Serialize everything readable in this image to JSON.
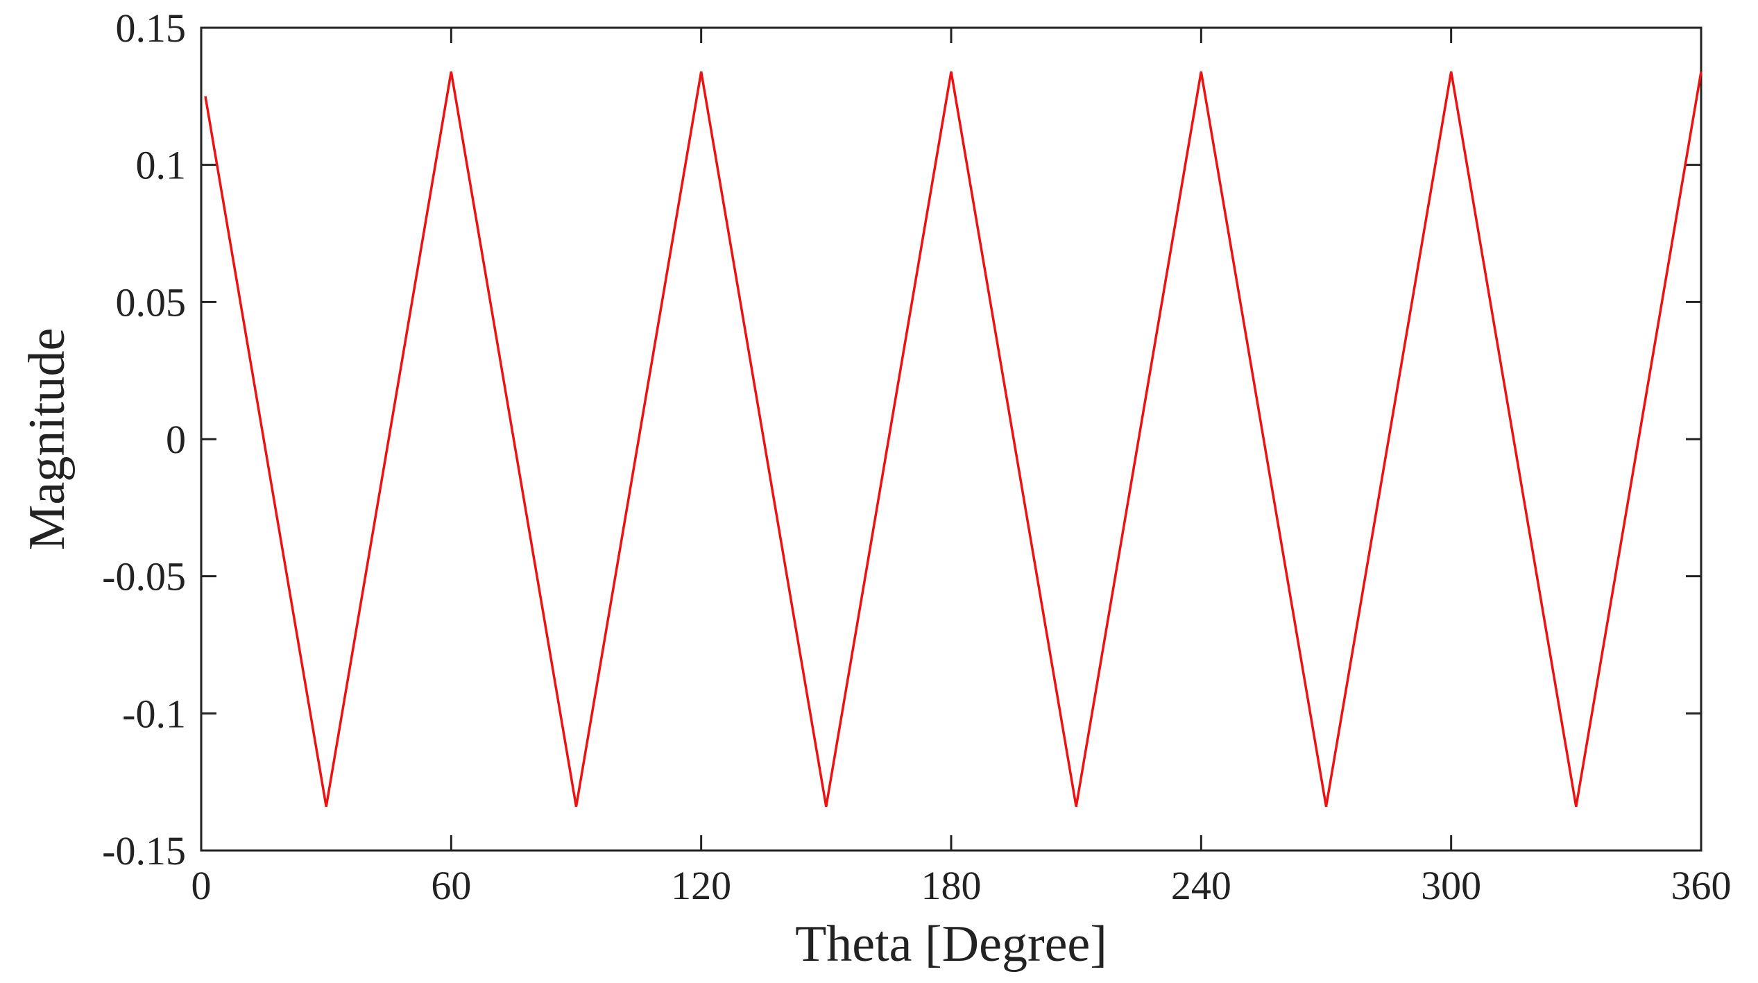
{
  "chart_data": {
    "type": "line",
    "title": "",
    "xlabel": "Theta [Degree]",
    "ylabel": "Magnitude",
    "xlim": [
      0,
      360
    ],
    "ylim": [
      -0.15,
      0.15
    ],
    "xticks": [
      0,
      60,
      120,
      180,
      240,
      300,
      360
    ],
    "xtick_labels": [
      "0",
      "60",
      "120",
      "180",
      "240",
      "300",
      "360"
    ],
    "yticks": [
      0.15,
      0.1,
      0.05,
      0,
      -0.05,
      -0.1,
      -0.15
    ],
    "ytick_labels": [
      "0.15",
      "0.1",
      "0.05",
      "0",
      "-0.05",
      "-0.1",
      "-0.15"
    ],
    "grid": false,
    "legend": "none",
    "series": [
      {
        "color": "#ee1111",
        "x": [
          1,
          30,
          60,
          90,
          120,
          150,
          180,
          210,
          240,
          270,
          300,
          330,
          360
        ],
        "y": [
          0.125,
          -0.134,
          0.134,
          -0.134,
          0.134,
          -0.134,
          0.134,
          -0.134,
          0.134,
          -0.134,
          0.134,
          -0.134,
          0.134
        ]
      }
    ]
  }
}
